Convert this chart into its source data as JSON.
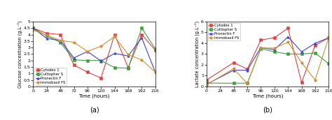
{
  "chart_a": {
    "title": "(a)",
    "xlabel": "Time (hours)",
    "ylabel": "Glucose concentration (g.L⁻¹)",
    "ylim": [
      0.0,
      5.0
    ],
    "xlim": [
      0,
      216
    ],
    "xticks": [
      0,
      24,
      48,
      72,
      96,
      120,
      144,
      168,
      192,
      216
    ],
    "yticks": [
      0.0,
      0.5,
      1.0,
      1.5,
      2.0,
      2.5,
      3.0,
      3.5,
      4.0,
      4.5,
      5.0
    ],
    "series": {
      "Cytodex 1": {
        "color": "#e04040",
        "marker": "s",
        "x": [
          0,
          24,
          48,
          72,
          96,
          120,
          144,
          168,
          192,
          216
        ],
        "y": [
          4.5,
          4.1,
          4.0,
          1.65,
          1.1,
          0.65,
          4.0,
          1.45,
          4.0,
          2.8
        ]
      },
      "Cultispher S": {
        "color": "#40a040",
        "marker": "s",
        "x": [
          0,
          24,
          48,
          72,
          96,
          120,
          144,
          168,
          192,
          216
        ],
        "y": [
          4.5,
          3.9,
          3.4,
          2.05,
          2.0,
          2.0,
          1.45,
          1.4,
          4.5,
          2.9
        ]
      },
      "Pronectin F": {
        "color": "#4040d0",
        "marker": "^",
        "x": [
          0,
          24,
          48,
          72,
          96,
          120,
          144,
          168,
          192,
          216
        ],
        "y": [
          4.5,
          3.7,
          3.55,
          2.2,
          2.7,
          1.95,
          2.55,
          2.35,
          3.75,
          1.1
        ]
      },
      "Immobasil FS": {
        "color": "#d09030",
        "marker": "o",
        "x": [
          0,
          24,
          48,
          72,
          96,
          120,
          144,
          168,
          192,
          216
        ],
        "y": [
          4.35,
          3.95,
          3.55,
          3.4,
          2.7,
          3.1,
          3.85,
          2.45,
          2.05,
          1.1
        ]
      }
    }
  },
  "chart_b": {
    "title": "(b)",
    "xlabel": "Time (hours)",
    "ylabel": "Lactate concentration (g.L⁻¹)",
    "ylim": [
      0.0,
      6.0
    ],
    "xlim": [
      0,
      216
    ],
    "xticks": [
      0,
      24,
      48,
      72,
      96,
      120,
      144,
      168,
      192,
      216
    ],
    "yticks": [
      0.0,
      1.0,
      2.0,
      3.0,
      4.0,
      5.0,
      6.0
    ],
    "series": {
      "Cytodex 1": {
        "color": "#e04040",
        "marker": "s",
        "x": [
          0,
          48,
          72,
          96,
          120,
          144,
          168,
          192,
          216
        ],
        "y": [
          0.6,
          2.2,
          1.6,
          4.3,
          4.5,
          5.4,
          0.35,
          3.8,
          4.5
        ]
      },
      "Cultispher S": {
        "color": "#40a040",
        "marker": "s",
        "x": [
          0,
          48,
          72,
          96,
          120,
          144,
          168,
          192,
          216
        ],
        "y": [
          0.3,
          0.3,
          0.3,
          3.5,
          3.2,
          3.0,
          3.0,
          3.1,
          2.1
        ]
      },
      "Pronectin F": {
        "color": "#4040d0",
        "marker": "^",
        "x": [
          0,
          48,
          72,
          96,
          120,
          144,
          168,
          192,
          216
        ],
        "y": [
          0.2,
          1.5,
          1.5,
          3.6,
          3.4,
          4.6,
          3.2,
          4.0,
          4.5
        ]
      },
      "Immobasil FS": {
        "color": "#d09030",
        "marker": "o",
        "x": [
          0,
          48,
          72,
          96,
          120,
          144,
          168,
          192,
          216
        ],
        "y": [
          0.15,
          1.65,
          0.25,
          3.55,
          3.55,
          4.1,
          2.2,
          0.6,
          4.5
        ]
      }
    }
  },
  "background_color": "#ffffff",
  "fontsize": 5.0,
  "title_fontsize": 7.0,
  "linewidth": 0.8,
  "markersize": 2.5
}
